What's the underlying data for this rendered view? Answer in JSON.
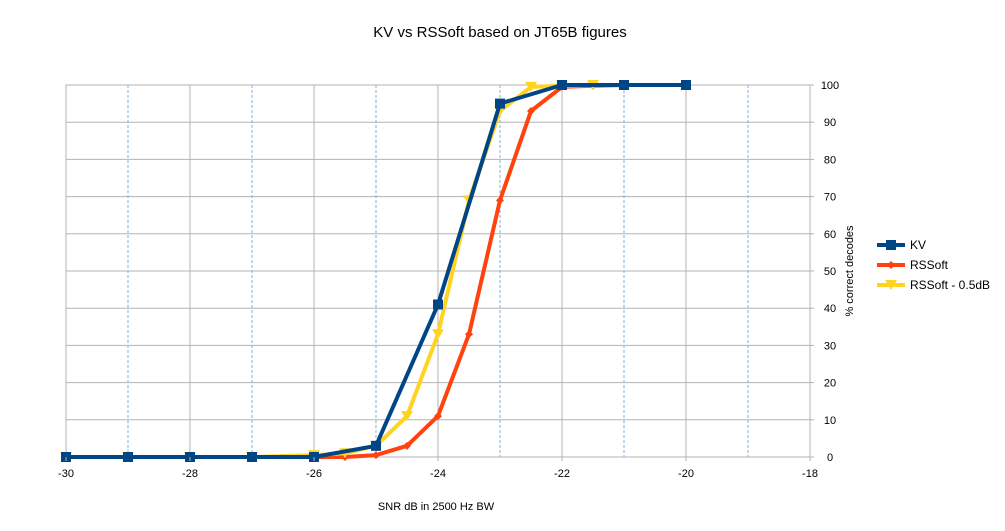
{
  "chart_data": {
    "type": "line",
    "title": "KV vs RSSoft based on JT65B figures",
    "xlabel": "SNR dB in 2500 Hz BW",
    "ylabel": "% correct decodes",
    "xlim": [
      -30,
      -18
    ],
    "ylim": [
      0,
      100
    ],
    "x_ticks": [
      -30,
      -28,
      -26,
      -24,
      -22,
      -20,
      -18
    ],
    "y_ticks": [
      0,
      10,
      20,
      30,
      40,
      50,
      60,
      70,
      80,
      90,
      100
    ],
    "x_tick_labels": [
      "-30",
      "-28",
      "-26",
      "-24",
      "-22",
      "-20",
      "-18"
    ],
    "y_tick_labels": [
      "0",
      "10",
      "20",
      "30",
      "40",
      "50",
      "60",
      "70",
      "80",
      "90",
      "100"
    ],
    "grid": "horizontal solid, vertical dashed",
    "y_axis_side": "right",
    "legend_position": "right",
    "series": [
      {
        "name": "KV",
        "color": "#004586",
        "marker": "square",
        "x": [
          -30,
          -29,
          -28,
          -27,
          -26,
          -25,
          -24,
          -23,
          -22,
          -21,
          -20
        ],
        "y": [
          0,
          0,
          0,
          0,
          0,
          3,
          41,
          95,
          100,
          100,
          100
        ]
      },
      {
        "name": "RSSoft",
        "color": "#ff420e",
        "marker": "diamond",
        "x": [
          -30,
          -29,
          -28,
          -27,
          -26,
          -25.5,
          -25,
          -24.5,
          -24,
          -23.5,
          -23,
          -22.5,
          -22,
          -21.5,
          -21
        ],
        "y": [
          0,
          0,
          0,
          0,
          0,
          0,
          0.5,
          3,
          11,
          33,
          69,
          93,
          99.5,
          99.8,
          100
        ]
      },
      {
        "name": "RSSoft - 0.5dB",
        "color": "#ffd320",
        "marker": "triangle-down",
        "x": [
          -30,
          -29,
          -28,
          -27,
          -26,
          -25.5,
          -25,
          -24.5,
          -24,
          -23.5,
          -23,
          -22.5,
          -22,
          -21.5
        ],
        "y": [
          0,
          0,
          0,
          0,
          0.5,
          1,
          3,
          11,
          33,
          69,
          93,
          99.5,
          99.8,
          100
        ]
      }
    ]
  }
}
